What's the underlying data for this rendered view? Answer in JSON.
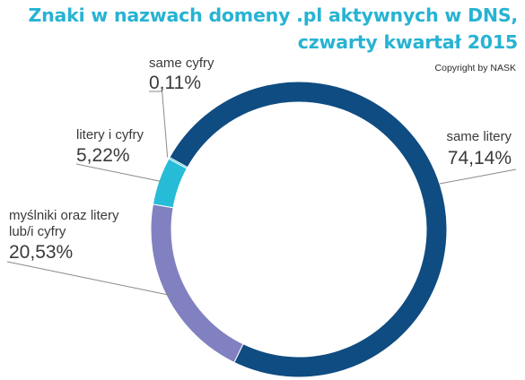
{
  "header": {
    "title_line1": "Znaki w nazwach domeny .pl aktywnych w DNS,",
    "title_line2": "czwarty kwartał 2015",
    "copyright": "Copyright by NASK"
  },
  "chart_data": {
    "type": "pie",
    "title": "Znaki w nazwach domeny .pl aktywnych w DNS, czwarty kwartał 2015",
    "categories": [
      "same litery",
      "myślniki oraz litery lub/i cyfry",
      "litery i cyfry",
      "same cyfry"
    ],
    "values": [
      74.14,
      20.53,
      5.22,
      0.11
    ],
    "value_labels": [
      "74,14%",
      "20,53%",
      "5,22%",
      "0,11%"
    ],
    "colors": [
      "#0f4c81",
      "#8181c1",
      "#26bcd7",
      "#26bcd7"
    ],
    "donut": true,
    "legend": "none"
  }
}
